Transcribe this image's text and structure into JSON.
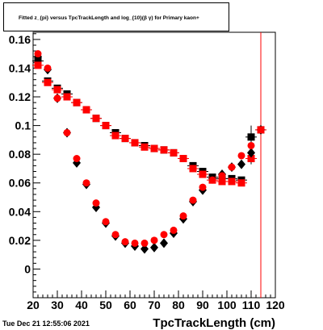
{
  "title": "Fitted z_{pi} versus TpcTrackLength and log_{10}(β γ) for Primary kaon+",
  "footer_date": "Tue Dec 21 12:55:06 2021",
  "chart_data": {
    "type": "scatter",
    "title": "Fitted z_{pi} versus TpcTrackLength and log_{10}(β γ) for Primary kaon+",
    "xlabel": "TpcTrackLength (cm)",
    "ylabel": "",
    "xlim": [
      20,
      120
    ],
    "ylim": [
      -0.02,
      0.165
    ],
    "xticks": [
      20,
      30,
      40,
      50,
      60,
      70,
      80,
      90,
      100,
      110,
      120
    ],
    "yticks": [
      0,
      0.02,
      0.04,
      0.06,
      0.08,
      0.1,
      0.12,
      0.14,
      0.16
    ],
    "ytick_labels": [
      "0",
      "0.02",
      "0.04",
      "0.06",
      "0.08",
      "0.1",
      "0.12",
      "0.14",
      "0.16"
    ],
    "grid": false,
    "colors": {
      "black": "#000000",
      "red": "#ff0000"
    },
    "series": [
      {
        "marker": "square",
        "color": "#000000",
        "points": [
          [
            22,
            0.145
          ],
          [
            26,
            0.131
          ],
          [
            30,
            0.126
          ],
          [
            34,
            0.122
          ],
          [
            38,
            0.116
          ],
          [
            42,
            0.111
          ],
          [
            46,
            0.105
          ],
          [
            50,
            0.1
          ],
          [
            54,
            0.095
          ],
          [
            58,
            0.091
          ],
          [
            62,
            0.088
          ],
          [
            66,
            0.086
          ],
          [
            70,
            0.084
          ],
          [
            74,
            0.083
          ],
          [
            78,
            0.081
          ],
          [
            82,
            0.077
          ],
          [
            86,
            0.072
          ],
          [
            90,
            0.068
          ],
          [
            94,
            0.064
          ],
          [
            98,
            0.063
          ],
          [
            102,
            0.063
          ],
          [
            106,
            0.062
          ],
          [
            110,
            0.092
          ],
          [
            114,
            0.097
          ]
        ]
      },
      {
        "marker": "square",
        "color": "#ff0000",
        "points": [
          [
            22,
            0.142
          ],
          [
            26,
            0.13
          ],
          [
            30,
            0.125
          ],
          [
            34,
            0.12
          ],
          [
            38,
            0.116
          ],
          [
            42,
            0.111
          ],
          [
            46,
            0.105
          ],
          [
            50,
            0.1
          ],
          [
            54,
            0.093
          ],
          [
            58,
            0.091
          ],
          [
            62,
            0.088
          ],
          [
            66,
            0.085
          ],
          [
            70,
            0.084
          ],
          [
            74,
            0.083
          ],
          [
            78,
            0.081
          ],
          [
            82,
            0.077
          ],
          [
            86,
            0.07
          ],
          [
            90,
            0.066
          ],
          [
            94,
            0.062
          ],
          [
            98,
            0.061
          ],
          [
            102,
            0.061
          ],
          [
            106,
            0.06
          ],
          [
            110,
            0.077
          ],
          [
            114,
            0.097
          ]
        ]
      },
      {
        "marker": "diamond",
        "color": "#000000",
        "points": [
          [
            22,
            0.148
          ],
          [
            26,
            0.139
          ],
          [
            30,
            0.119
          ],
          [
            34,
            0.095
          ],
          [
            38,
            0.074
          ],
          [
            42,
            0.059
          ],
          [
            46,
            0.043
          ],
          [
            50,
            0.032
          ],
          [
            54,
            0.023
          ],
          [
            58,
            0.018
          ],
          [
            62,
            0.016
          ],
          [
            66,
            0.014
          ],
          [
            70,
            0.015
          ],
          [
            74,
            0.018
          ],
          [
            78,
            0.025
          ],
          [
            82,
            0.035
          ],
          [
            86,
            0.047
          ],
          [
            90,
            0.055
          ],
          [
            94,
            0.063
          ],
          [
            98,
            0.066
          ],
          [
            102,
            0.071
          ],
          [
            106,
            0.073
          ],
          [
            110,
            0.081
          ],
          [
            114,
            0.097
          ]
        ]
      },
      {
        "marker": "circle",
        "color": "#ff0000",
        "points": [
          [
            22,
            0.15
          ],
          [
            26,
            0.14
          ],
          [
            30,
            0.119
          ],
          [
            34,
            0.095
          ],
          [
            38,
            0.077
          ],
          [
            42,
            0.06
          ],
          [
            46,
            0.046
          ],
          [
            50,
            0.033
          ],
          [
            54,
            0.024
          ],
          [
            58,
            0.019
          ],
          [
            62,
            0.018
          ],
          [
            66,
            0.018
          ],
          [
            70,
            0.02
          ],
          [
            74,
            0.024
          ],
          [
            78,
            0.027
          ],
          [
            82,
            0.037
          ],
          [
            86,
            0.048
          ],
          [
            90,
            0.057
          ],
          [
            94,
            0.062
          ],
          [
            98,
            0.065
          ],
          [
            102,
            0.071
          ],
          [
            106,
            0.079
          ],
          [
            110,
            0.086
          ],
          [
            114,
            0.097
          ]
        ]
      }
    ],
    "error_bars": [
      {
        "x": 110,
        "low": 0.073,
        "high": 0.1,
        "color": "#000000"
      },
      {
        "x": 114,
        "low": -0.02,
        "high": 0.165,
        "color": "#ff0000"
      }
    ]
  }
}
